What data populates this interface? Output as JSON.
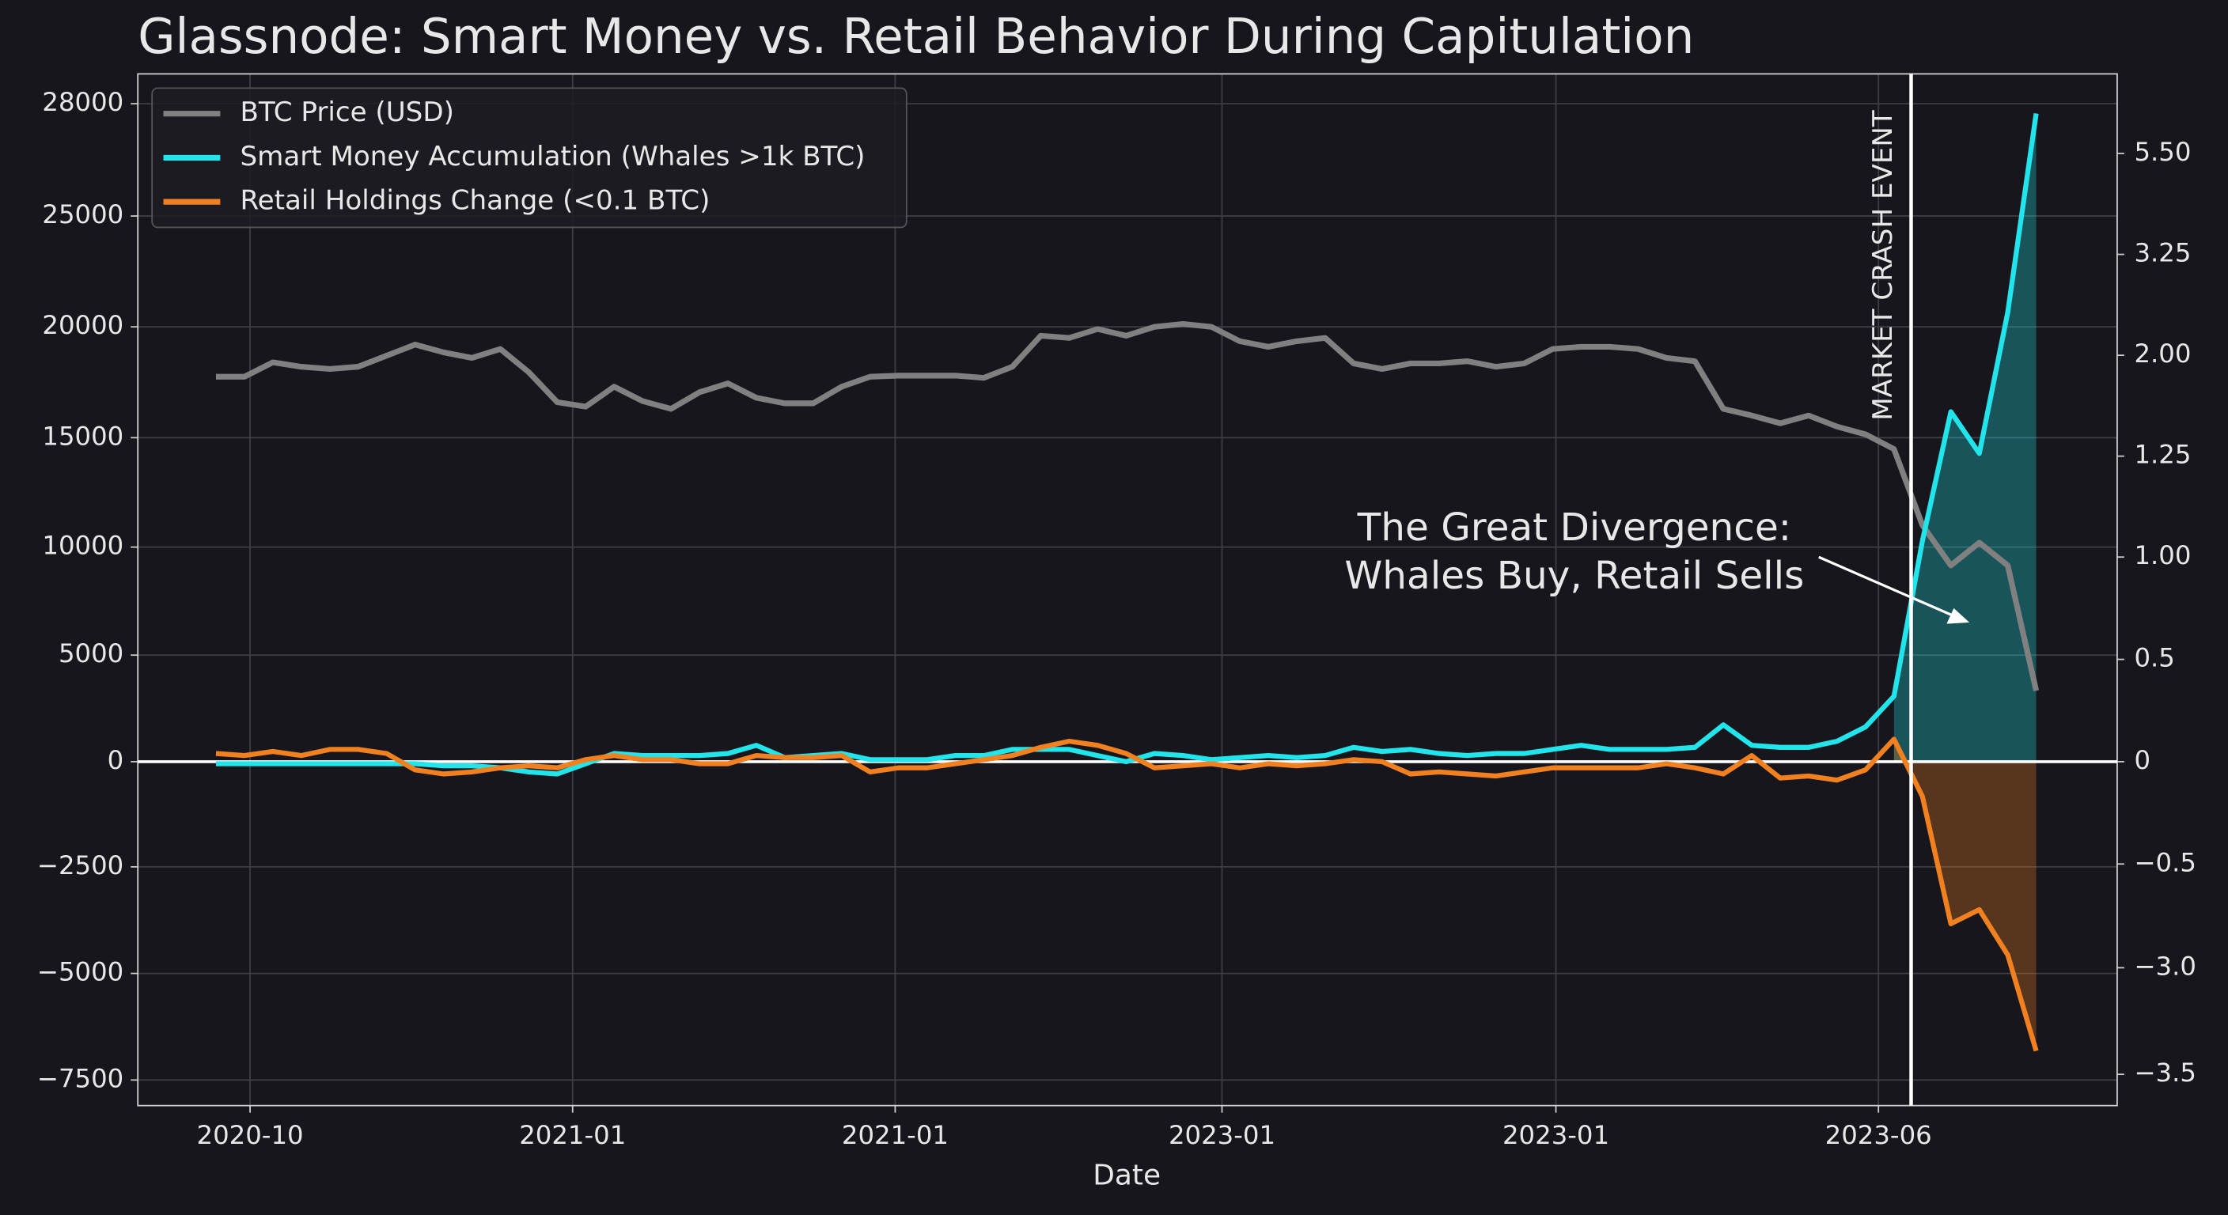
{
  "chart_data": {
    "type": "line",
    "title": "Glassnode: Smart Money vs. Retail Behavior During Capitulation",
    "xlabel": "Date",
    "xtick_labels": [
      "2020-10",
      "2021-01",
      "2021-01",
      "2023-01",
      "2023-01",
      "2023-06"
    ],
    "ylim": [
      -8100,
      28800
    ],
    "yticks": [
      28000,
      25000,
      20000,
      15000,
      10000,
      5000,
      0,
      {
        "value": -2500,
        "label": "−2500"
      },
      {
        "value": -5000,
        "label": "−5000"
      },
      {
        "value": -7500,
        "label": "−7500"
      }
    ],
    "y2lim": [
      -3.65,
      7.27
    ],
    "y2ticks": [
      {
        "value": 5.5,
        "label": "5.50"
      },
      3.25,
      {
        "value": 2,
        "label": "2.00"
      },
      1.25,
      {
        "value": 1,
        "label": "1.00"
      },
      0.5,
      0,
      {
        "value": -0.5,
        "label": "−0.5"
      },
      {
        "value": -3,
        "label": "−3.0"
      },
      {
        "value": -3.5,
        "label": "−3.5"
      }
    ],
    "grid": true,
    "legend": "upper left",
    "series": [
      {
        "name": "BTC Price (USD)",
        "color": "#808080",
        "values": [
          17750,
          17750,
          18400,
          18200,
          18100,
          18200,
          18700,
          19200,
          18850,
          18600,
          19000,
          17950,
          16600,
          16400,
          17300,
          16650,
          16300,
          17050,
          17450,
          16800,
          16550,
          16550,
          17300,
          17750,
          17800,
          17800,
          17800,
          17700,
          18200,
          19600,
          19500,
          19900,
          19600,
          20000,
          20130,
          20000,
          19350,
          19100,
          19350,
          19500,
          18350,
          18100,
          18350,
          18350,
          18450,
          18200,
          18350,
          19000,
          19100,
          19100,
          19000,
          18600,
          18450,
          16300,
          16000,
          15650,
          16000,
          15500,
          15150,
          14480,
          11000,
          9150,
          10200,
          9150,
          3330
        ]
      },
      {
        "name": "Smart Money Accumulation (Whales >1k BTC)",
        "color": "#22e5ec",
        "axis": "y2",
        "values": [
          -0.01,
          -0.01,
          -0.01,
          -0.01,
          -0.01,
          -0.01,
          -0.01,
          -0.01,
          -0.02,
          -0.02,
          -0.03,
          -0.05,
          -0.06,
          -0.01,
          0.04,
          0.03,
          0.03,
          0.03,
          0.04,
          0.08,
          0.02,
          0.03,
          0.04,
          0.01,
          0.01,
          0.01,
          0.03,
          0.03,
          0.06,
          0.06,
          0.06,
          0.03,
          0,
          0.04,
          0.03,
          0.01,
          0.02,
          0.03,
          0.02,
          0.03,
          0.07,
          0.05,
          0.06,
          0.04,
          0.03,
          0.04,
          0.04,
          0.06,
          0.08,
          0.06,
          0.06,
          0.06,
          0.07,
          0.18,
          0.08,
          0.07,
          0.07,
          0.1,
          0.17,
          0.32,
          1.04,
          1.58,
          1.27,
          2.53,
          6.39
        ]
      },
      {
        "name": "Retail Holdings Change (<0.1 BTC)",
        "color": "#f08020",
        "axis": "y2",
        "values": [
          0.04,
          0.03,
          0.05,
          0.03,
          0.06,
          0.06,
          0.04,
          -0.04,
          -0.06,
          -0.05,
          -0.03,
          -0.02,
          -0.03,
          0.01,
          0.03,
          0.01,
          0.01,
          -0.01,
          -0.01,
          0.03,
          0.02,
          0.02,
          0.03,
          -0.05,
          -0.03,
          -0.03,
          -0.01,
          0.01,
          0.03,
          0.07,
          0.1,
          0.08,
          0.04,
          -0.03,
          -0.02,
          -0.01,
          -0.03,
          -0.01,
          -0.02,
          -0.01,
          0.01,
          0,
          -0.06,
          -0.05,
          -0.06,
          -0.07,
          -0.05,
          -0.03,
          -0.03,
          -0.03,
          -0.03,
          -0.01,
          -0.03,
          -0.06,
          0.03,
          -0.08,
          -0.07,
          -0.09,
          -0.04,
          0.11,
          -0.17,
          -1.94,
          -1.6,
          -2.69,
          -3.39
        ]
      }
    ],
    "annotations": [
      "MARKET CRASH EVENT",
      "The Great Divergence:",
      "Whales Buy, Retail Sells"
    ]
  }
}
